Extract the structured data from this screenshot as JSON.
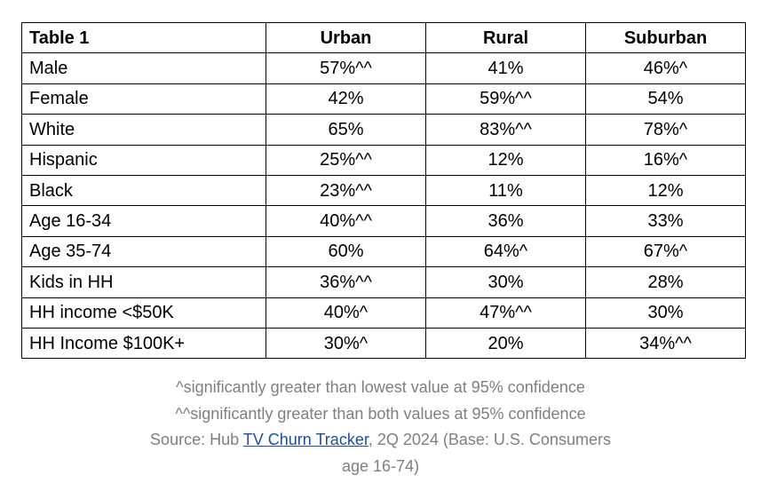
{
  "table": {
    "headers": [
      "Table 1",
      "Urban",
      "Rural",
      "Suburban"
    ],
    "rows": [
      {
        "label": "Male",
        "urban": "57%^^",
        "rural": "41%",
        "suburban": "46%^"
      },
      {
        "label": "Female",
        "urban": "42%",
        "rural": "59%^^",
        "suburban": "54%"
      },
      {
        "label": "White",
        "urban": "65%",
        "rural": "83%^^",
        "suburban": "78%^"
      },
      {
        "label": "Hispanic",
        "urban": "25%^^",
        "rural": "12%",
        "suburban": "16%^"
      },
      {
        "label": "Black",
        "urban": "23%^^",
        "rural": "11%",
        "suburban": "12%"
      },
      {
        "label": "Age 16-34",
        "urban": "40%^^",
        "rural": "36%",
        "suburban": "33%"
      },
      {
        "label": "Age 35-74",
        "urban": "60%",
        "rural": "64%^",
        "suburban": "67%^"
      },
      {
        "label": "Kids in HH",
        "urban": "36%^^",
        "rural": "30%",
        "suburban": "28%"
      },
      {
        "label": "HH income <$50K",
        "urban": "40%^",
        "rural": "47%^^",
        "suburban": "30%"
      },
      {
        "label": "HH Income $100K+",
        "urban": "30%^",
        "rural": "20%",
        "suburban": "34%^^"
      }
    ]
  },
  "caption": {
    "note1": "^significantly greater than lowest value at 95% confidence",
    "note2": "^^significantly greater than both values at 95% confidence",
    "source_prefix": "Source: Hub ",
    "source_link": "TV Churn Tracker",
    "source_suffix": ", 2Q 2024 (Base: U.S. Consumers",
    "source_line2": "age 16-74)",
    "link_color": "#1f4e9c",
    "text_color": "#7f7f7f"
  }
}
